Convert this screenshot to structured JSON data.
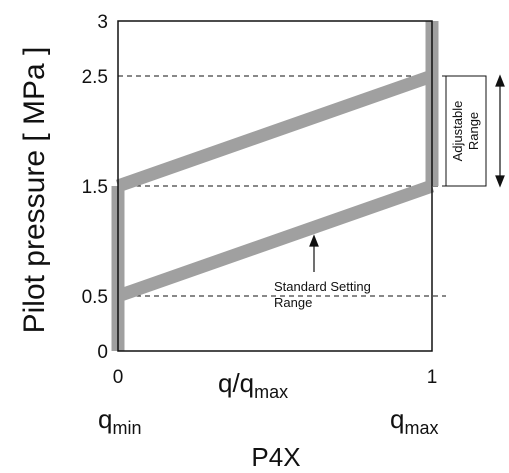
{
  "chart_data": {
    "type": "line",
    "title": "P4X",
    "xlabel": "q/q",
    "xlabel_sub": "max",
    "ylabel": "Pilot pressure [ MPa ]",
    "xlim": [
      0,
      1
    ],
    "ylim": [
      0,
      3
    ],
    "x_ticks": [
      "0",
      "1"
    ],
    "y_ticks": [
      "0",
      "0.5",
      "1.5",
      "2.5",
      "3"
    ],
    "x_tick_values": [
      0,
      1
    ],
    "y_tick_values": [
      0,
      0.5,
      1.5,
      2.5,
      3
    ],
    "x_end_labels": [
      {
        "main": "q",
        "sub": "min"
      },
      {
        "main": "q",
        "sub": "max"
      }
    ],
    "reference_lines": [
      0.5,
      1.5,
      2.5
    ],
    "band_color": "#a0a0a0",
    "series": [
      {
        "x": [
          0,
          1
        ],
        "y": [
          1.5,
          2.5
        ]
      },
      {
        "x": [
          0,
          1
        ],
        "y": [
          0.5,
          1.5
        ]
      },
      {
        "x": [
          0,
          0
        ],
        "y": [
          0,
          1.5
        ]
      },
      {
        "x": [
          1,
          1
        ],
        "y": [
          1.5,
          3
        ]
      }
    ],
    "annotations": {
      "adjustable_line1": "Adjustable",
      "adjustable_line2": "Range",
      "standard_line1": "Standard Setting",
      "standard_line2": "Range"
    }
  }
}
